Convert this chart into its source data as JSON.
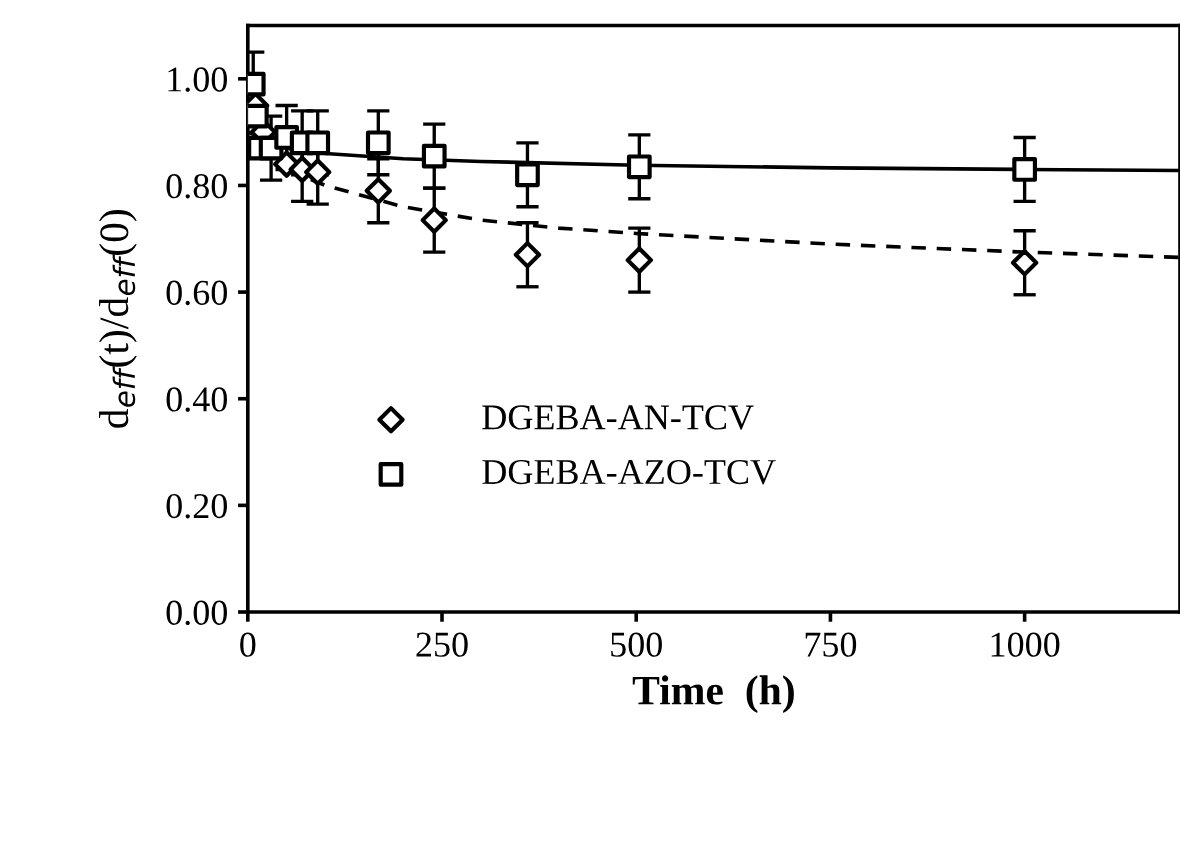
{
  "chart_data": {
    "type": "scatter",
    "xlabel": "Time  (h)",
    "ylabel": "d$_{eff}$(t)/d$_{eff}$(0)",
    "xlim": [
      0,
      1200
    ],
    "xticks": [
      0,
      250,
      500,
      750,
      1000
    ],
    "ylim": [
      0,
      1.1
    ],
    "yticks": [
      {
        "value": 0,
        "label": "0.00"
      },
      {
        "value": 0.2,
        "label": "0.20"
      },
      {
        "value": 0.4,
        "label": "0.40"
      },
      {
        "value": 0.6,
        "label": "0.60"
      },
      {
        "value": 0.8,
        "label": "0.80"
      },
      {
        "value": 1.0,
        "label": "1.00"
      }
    ],
    "grid": false,
    "legend": "bottom left",
    "series": [
      {
        "name": "DGEBA-AN-TCV",
        "marker": "diamond",
        "color": "#000000",
        "x": [
          10,
          20,
          50,
          70,
          90,
          168,
          240,
          360,
          504,
          1000
        ],
        "values": [
          0.95,
          0.9,
          0.84,
          0.83,
          0.825,
          0.79,
          0.735,
          0.67,
          0.66,
          0.655
        ],
        "errors": [
          null,
          null,
          null,
          0.06,
          0.06,
          0.06,
          0.06,
          0.06,
          0.06,
          0.06
        ]
      },
      {
        "name": "DGEBA-AZO-TCV",
        "marker": "square",
        "color": "#000000",
        "x": [
          7,
          11,
          15,
          30,
          50,
          70,
          90,
          168,
          240,
          360,
          504,
          1000
        ],
        "values": [
          0.99,
          0.93,
          0.87,
          0.87,
          0.89,
          0.88,
          0.88,
          0.88,
          0.855,
          0.82,
          0.835,
          0.83
        ],
        "errors": [
          0.06,
          null,
          null,
          0.06,
          0.06,
          0.06,
          0.06,
          0.06,
          0.06,
          0.06,
          0.06,
          0.06
        ]
      },
      {
        "type": "line",
        "line_style": "dashed",
        "color": "#000000",
        "x": [
          0,
          50,
          100,
          200,
          300,
          400,
          500,
          750,
          1000,
          1200
        ],
        "values": [
          0.95,
          0.83,
          0.8,
          0.76,
          0.735,
          0.72,
          0.71,
          0.69,
          0.675,
          0.665
        ]
      },
      {
        "type": "line",
        "line_style": "solid",
        "color": "#000000",
        "x": [
          0,
          50,
          100,
          200,
          300,
          500,
          750,
          1000,
          1200
        ],
        "values": [
          0.9,
          0.87,
          0.86,
          0.85,
          0.845,
          0.838,
          0.833,
          0.83,
          0.828
        ]
      }
    ]
  }
}
